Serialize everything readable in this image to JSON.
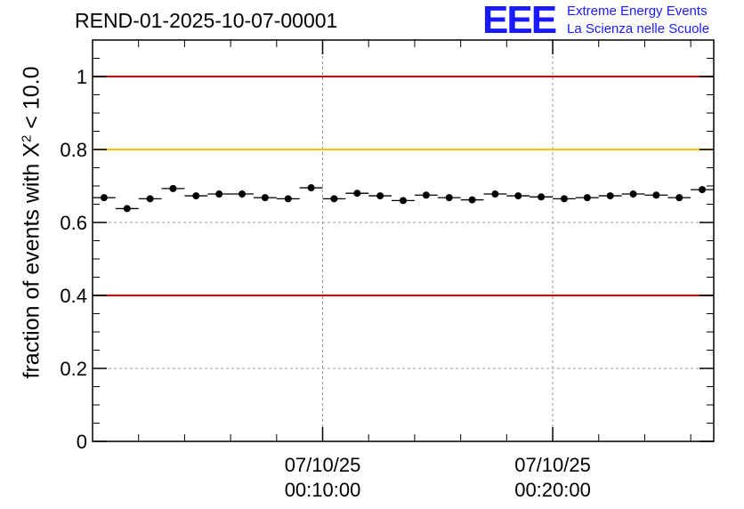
{
  "header": {
    "run_id": "REND-01-2025-10-07-00001",
    "logo_mark": "EEE",
    "logo_line1": "Extreme Energy Events",
    "logo_line2": "La Scienza nelle Scuole"
  },
  "chart_data": {
    "type": "scatter",
    "title": "REND-01-2025-10-07-00001",
    "xlabel": "",
    "ylabel_prefix": "fraction of events with",
    "ylabel_symbol": "X",
    "ylabel_power": "2",
    "ylabel_suffix": "< 10.0",
    "xlim_minutes": [
      0,
      27
    ],
    "ylim": [
      0,
      1.1
    ],
    "yticks": [
      0,
      0.2,
      0.4,
      0.6,
      0.8,
      1
    ],
    "ytick_labels": [
      "0",
      "0.2",
      "0.4",
      "0.6",
      "0.8",
      "1"
    ],
    "xticks_minutes": [
      10,
      20
    ],
    "xtick_labels": [
      {
        "date": "07/10/25",
        "time": "00:10:00"
      },
      {
        "date": "07/10/25",
        "time": "00:20:00"
      }
    ],
    "grid": true,
    "reference_lines": [
      {
        "name": "upper-red-line",
        "y": 1.0,
        "color": "#e00000"
      },
      {
        "name": "yellow-line",
        "y": 0.8,
        "color": "#ffc000"
      },
      {
        "name": "lower-red-line",
        "y": 0.4,
        "color": "#e00000"
      }
    ],
    "bin_width_minutes": 1,
    "x_minutes": [
      0.5,
      1.5,
      2.5,
      3.5,
      4.5,
      5.5,
      6.5,
      7.5,
      8.5,
      9.5,
      10.5,
      11.5,
      12.5,
      13.5,
      14.5,
      15.5,
      16.5,
      17.5,
      18.5,
      19.5,
      20.5,
      21.5,
      22.5,
      23.5,
      24.5,
      25.5,
      26.5
    ],
    "values": [
      0.668,
      0.638,
      0.665,
      0.693,
      0.673,
      0.678,
      0.678,
      0.668,
      0.665,
      0.695,
      0.665,
      0.68,
      0.673,
      0.66,
      0.675,
      0.668,
      0.662,
      0.678,
      0.673,
      0.67,
      0.665,
      0.668,
      0.673,
      0.678,
      0.675,
      0.668,
      0.69
    ],
    "errors": [
      0.008,
      0.008,
      0.008,
      0.008,
      0.008,
      0.008,
      0.008,
      0.008,
      0.008,
      0.008,
      0.008,
      0.008,
      0.008,
      0.008,
      0.008,
      0.008,
      0.008,
      0.008,
      0.008,
      0.008,
      0.008,
      0.008,
      0.008,
      0.008,
      0.008,
      0.008,
      0.008
    ],
    "colors": {
      "markers": "#000000",
      "grid": "#999999",
      "axis": "#000000"
    }
  }
}
